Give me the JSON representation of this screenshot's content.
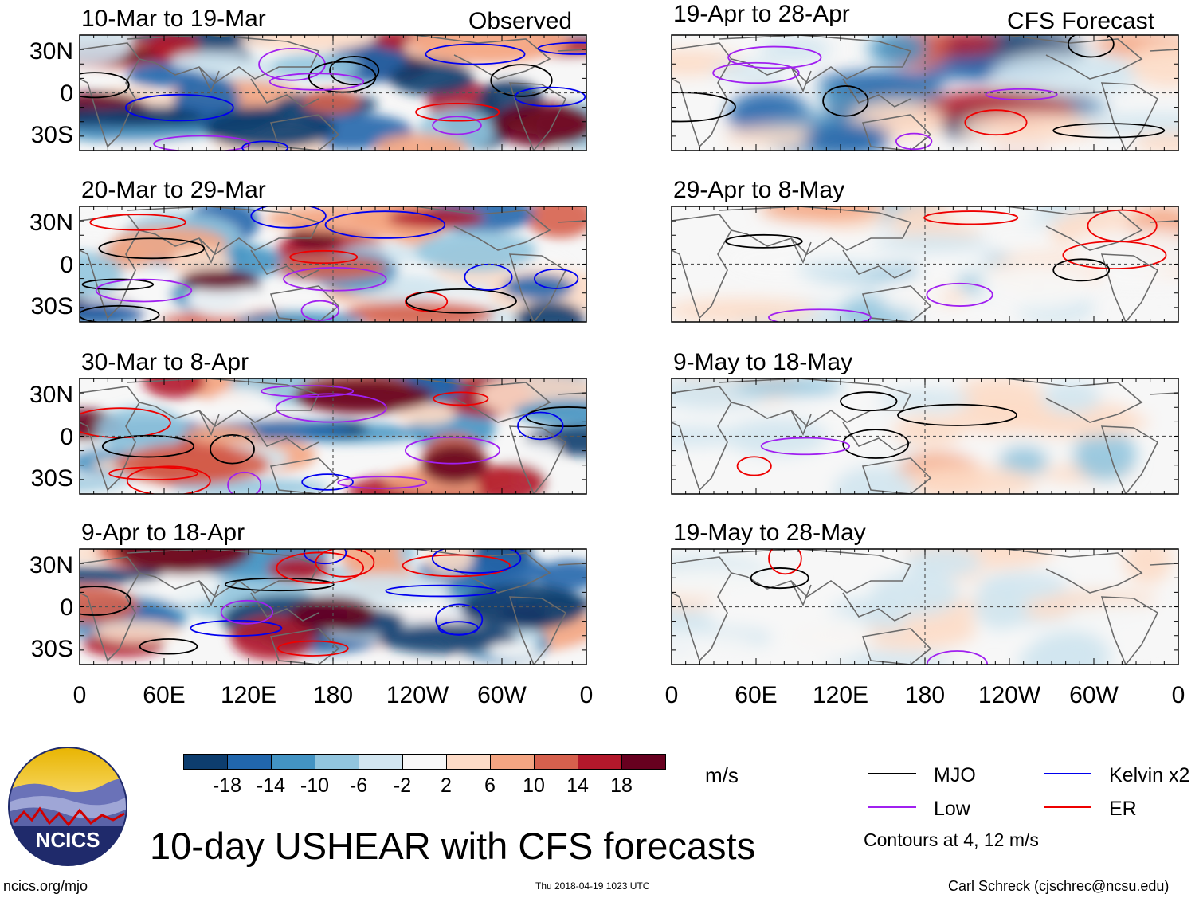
{
  "panel_titles": {
    "obs": [
      "10-Mar to 19-Mar",
      "20-Mar to 29-Mar",
      "30-Mar to 8-Apr",
      "9-Apr to 18-Apr"
    ],
    "fcst": [
      "19-Apr to 28-Apr",
      "29-Apr to 8-May",
      "9-May to 18-May",
      "19-May to 28-May"
    ]
  },
  "column_labels": {
    "obs": "Observed",
    "fcst": "CFS Forecast"
  },
  "lat_labels": [
    "30N",
    "0",
    "30S"
  ],
  "lon_labels": [
    "0",
    "60E",
    "120E",
    "180",
    "120W",
    "60W",
    "0"
  ],
  "colorbar": {
    "ticks": [
      "-18",
      "-14",
      "-10",
      "-6",
      "-2",
      "2",
      "6",
      "10",
      "14",
      "18"
    ],
    "colors": [
      "#0d3d6e",
      "#2166ac",
      "#4393c3",
      "#92c5de",
      "#d1e5f0",
      "#f7f7f7",
      "#fddbc7",
      "#f4a582",
      "#d6604d",
      "#b2182b",
      "#67001f"
    ],
    "unit": "m/s"
  },
  "legend": {
    "items": [
      {
        "label": "MJO",
        "color": "#000000"
      },
      {
        "label": "Kelvin x2",
        "color": "#0000ee"
      },
      {
        "label": "Low",
        "color": "#a020f0"
      },
      {
        "label": "ER",
        "color": "#ee0000"
      }
    ],
    "contour_note": "Contours at 4, 12 m/s"
  },
  "main_title": "10-day USHEAR with CFS forecasts",
  "logo_text": "NCICS",
  "footer": {
    "url": "ncics.org/mjo",
    "timestamp": "Thu 2018-04-19 1023 UTC",
    "author": "Carl Schreck (cjschrec@ncsu.edu)"
  }
}
